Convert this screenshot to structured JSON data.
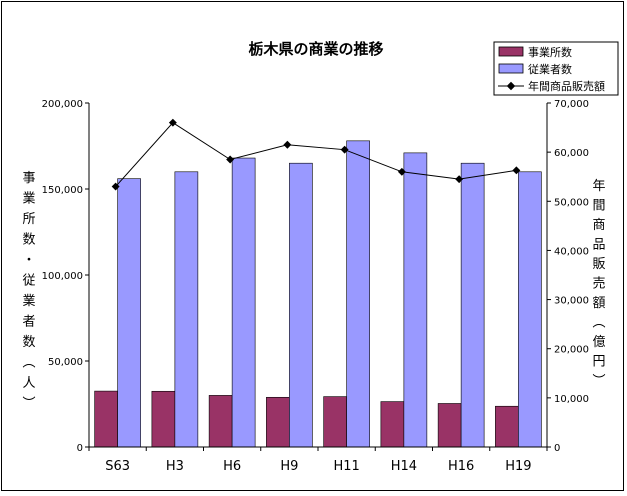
{
  "chart_data": {
    "type": "bar",
    "title": "栃木県の商業の推移",
    "categories": [
      "S63",
      "H3",
      "H6",
      "H9",
      "H11",
      "H14",
      "H16",
      "H19"
    ],
    "series": [
      {
        "name": "事業所数",
        "axis": "left",
        "kind": "bar",
        "color": "#993366",
        "values": [
          32500,
          32400,
          30000,
          28900,
          29300,
          26400,
          25300,
          23700
        ]
      },
      {
        "name": "従業者数",
        "axis": "left",
        "kind": "bar",
        "color": "#9999ff",
        "values": [
          156000,
          160000,
          168000,
          165000,
          178000,
          171000,
          165000,
          160000
        ]
      },
      {
        "name": "年間商品販売額",
        "axis": "right",
        "kind": "line",
        "color": "#000000",
        "values": [
          53000,
          66000,
          58500,
          61500,
          60500,
          56000,
          54500,
          56300
        ]
      }
    ],
    "ylabel": "事業所数・従業者数（人）",
    "y2label": "年間商品販売額（億円）",
    "ylim": [
      0,
      200000
    ],
    "y2lim": [
      0,
      70000
    ],
    "yticks": [
      "0",
      "50,000",
      "100,000",
      "150,000",
      "200,000"
    ],
    "y2ticks": [
      "0",
      "10,000",
      "20,000",
      "30,000",
      "40,000",
      "50,000",
      "60,000",
      "70,000"
    ],
    "legend_position": "top-right",
    "grid": false
  }
}
